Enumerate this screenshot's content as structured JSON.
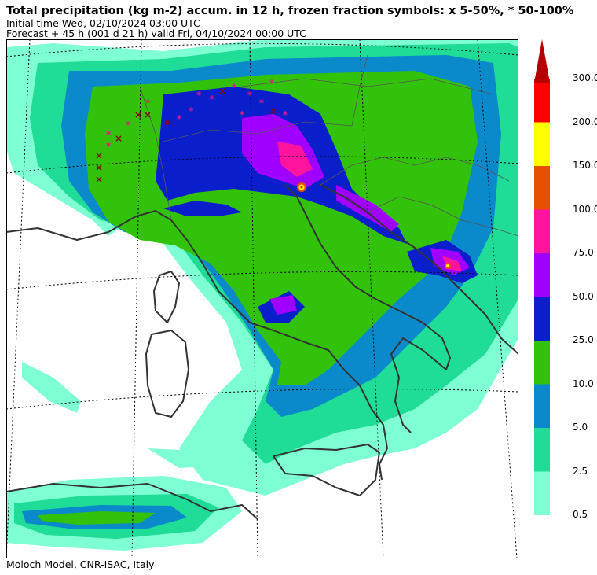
{
  "header": {
    "title": "Total precipitation (kg m-2) accum. in 12 h, frozen fraction symbols: x 5-50%, * 50-100%",
    "initial_time": "Initial time  Wed, 02/10/2024  03:00 UTC",
    "forecast": "Forecast  +  45 h  (001 d 21 h)  valid Fri, 04/10/2024 00:00 UTC"
  },
  "footer": {
    "credit": "Moloch Model, CNR-ISAC, Italy"
  },
  "legend": {
    "levels": [
      {
        "label": "0.5",
        "color": "#7fffd4"
      },
      {
        "label": "2.5",
        "color": "#1fdc96"
      },
      {
        "label": "5.0",
        "color": "#0a8acb"
      },
      {
        "label": "10.0",
        "color": "#32c20a"
      },
      {
        "label": "25.0",
        "color": "#0a1fcb"
      },
      {
        "label": "50.0",
        "color": "#a000ff"
      },
      {
        "label": "75.0",
        "color": "#ff14a0"
      },
      {
        "label": "100.0",
        "color": "#e65000"
      },
      {
        "label": "150.0",
        "color": "#ffff00"
      },
      {
        "label": "200.0",
        "color": "#ff0000"
      },
      {
        "label": "300.0",
        "color": "#b40000"
      }
    ]
  },
  "colors": {
    "coastline": "#333333",
    "borders": "#444444",
    "graticule": "#000000",
    "snow_symbol": "#e0188c",
    "mixed_symbol": "#8b0000"
  }
}
